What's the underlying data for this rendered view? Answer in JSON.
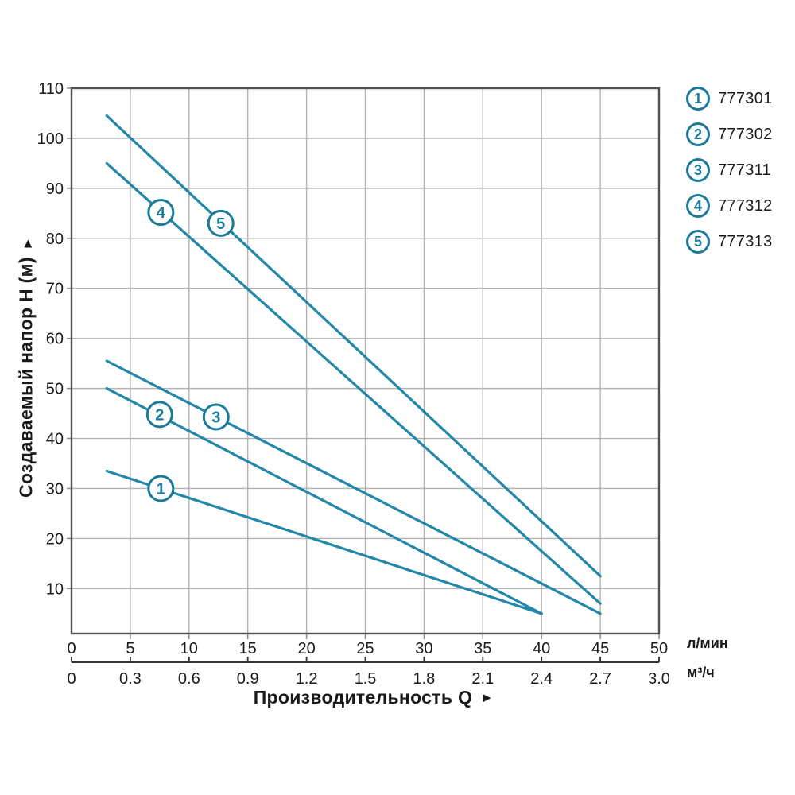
{
  "colors": {
    "curve": "#2287a8",
    "accent": "#1c7a99",
    "grid": "#b3b3b3",
    "frame": "#4f4f4f",
    "axis_secondary": "#333333",
    "tick": "#888888",
    "text": "#1a1a1a",
    "background": "#ffffff"
  },
  "chart_data": {
    "type": "line",
    "title": "",
    "grid": true,
    "legend_position": "top-right",
    "x_axis": {
      "label": "Производительность Q",
      "arrow": "►",
      "unit_primary": "л/мин",
      "unit_secondary": "м³/ч",
      "range_lmin": [
        0,
        50
      ],
      "ticks_lmin": [
        0,
        5,
        10,
        15,
        20,
        25,
        30,
        35,
        40,
        45,
        50
      ],
      "ticks_m3h": [
        "0",
        "0.3",
        "0.6",
        "0.9",
        "1.2",
        "1.5",
        "1.8",
        "2.1",
        "2.4",
        "2.7",
        "3.0"
      ]
    },
    "y_axis": {
      "label": "Создаваемый напор H (м)",
      "arrow": "▲",
      "range": [
        1,
        110
      ],
      "ticks": [
        10,
        20,
        30,
        40,
        50,
        60,
        70,
        80,
        90,
        100,
        110
      ]
    },
    "series": [
      {
        "num": "1",
        "code": "777301",
        "points": [
          [
            3,
            33.5
          ],
          [
            40,
            5
          ]
        ],
        "marker": {
          "x": 7.6,
          "y": 30.0
        }
      },
      {
        "num": "2",
        "code": "777302",
        "points": [
          [
            3,
            50.0
          ],
          [
            40,
            5
          ]
        ],
        "marker": {
          "x": 7.5,
          "y": 44.8
        }
      },
      {
        "num": "3",
        "code": "777311",
        "points": [
          [
            3,
            55.5
          ],
          [
            45,
            5
          ]
        ],
        "marker": {
          "x": 12.3,
          "y": 44.3
        }
      },
      {
        "num": "4",
        "code": "777312",
        "points": [
          [
            3,
            95.0
          ],
          [
            45,
            7
          ]
        ],
        "marker": {
          "x": 7.6,
          "y": 85.2
        }
      },
      {
        "num": "5",
        "code": "777313",
        "points": [
          [
            3,
            104.5
          ],
          [
            45,
            12.5
          ]
        ],
        "marker": {
          "x": 12.7,
          "y": 83.0
        }
      }
    ]
  }
}
